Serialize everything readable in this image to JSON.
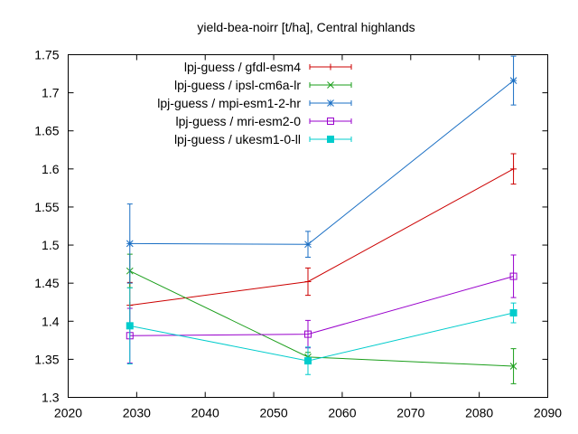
{
  "chart_data": {
    "type": "line",
    "title": "yield-bea-noirr [t/ha], Central highlands",
    "xlabel": "",
    "ylabel": "",
    "xlim": [
      2020,
      2090
    ],
    "ylim": [
      1.3,
      1.75
    ],
    "xticks": [
      2020,
      2030,
      2040,
      2050,
      2060,
      2070,
      2080,
      2090
    ],
    "yticks": [
      1.3,
      1.35,
      1.4,
      1.45,
      1.5,
      1.55,
      1.6,
      1.65,
      1.7,
      1.75
    ],
    "ytick_labels": [
      "1.3",
      "1.35",
      "1.4",
      "1.45",
      "1.5",
      "1.55",
      "1.6",
      "1.65",
      "1.7",
      "1.75"
    ],
    "grid": false,
    "legend_position": "top-left",
    "x": [
      2029,
      2055,
      2085
    ],
    "series": [
      {
        "name": "lpj-guess / gfdl-esm4",
        "color": "#cc0000",
        "marker": "plus",
        "values": [
          1.421,
          1.452,
          1.6
        ],
        "errors": [
          0.03,
          0.018,
          0.02
        ]
      },
      {
        "name": "lpj-guess / ipsl-cm6a-lr",
        "color": "#1a9e1a",
        "marker": "cross",
        "values": [
          1.466,
          1.353,
          1.341
        ],
        "errors": [
          0.022,
          0.006,
          0.023
        ]
      },
      {
        "name": "lpj-guess / mpi-esm1-2-hr",
        "color": "#1a6fc4",
        "marker": "star",
        "values": [
          1.502,
          1.501,
          1.716
        ],
        "errors": [
          0.052,
          0.017,
          0.032
        ]
      },
      {
        "name": "lpj-guess / mri-esm2-0",
        "color": "#9900cc",
        "marker": "open-square",
        "values": [
          1.381,
          1.383,
          1.459
        ],
        "errors": [
          0.036,
          0.018,
          0.028
        ]
      },
      {
        "name": "lpj-guess / ukesm1-0-ll",
        "color": "#00cccc",
        "marker": "filled-square",
        "values": [
          1.394,
          1.348,
          1.411
        ],
        "errors": [
          0.05,
          0.018,
          0.013
        ]
      }
    ]
  }
}
